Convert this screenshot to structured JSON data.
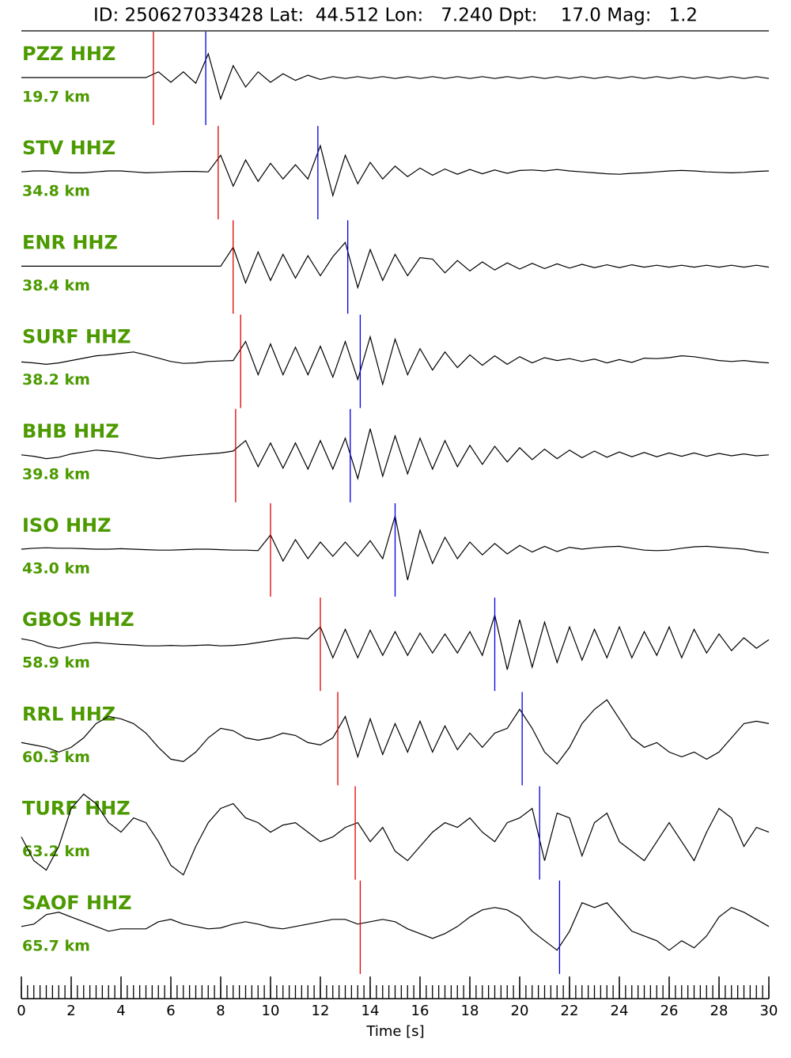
{
  "chart_data": {
    "type": "seismogram",
    "title": "ID: 250627033428 Lat:  44.512 Lon:   7.240 Dpt:    17.0 Mag:   1.2",
    "xlabel": "Time [s]",
    "xlim": [
      0,
      30
    ],
    "xticks": [
      0,
      2,
      4,
      6,
      8,
      10,
      12,
      14,
      16,
      18,
      20,
      22,
      24,
      26,
      28,
      30
    ],
    "xminorticks": [
      0,
      0.25,
      0.5,
      0.75,
      1,
      1.25,
      1.5,
      1.75,
      2,
      2.25,
      2.5,
      2.75,
      3,
      3.25,
      3.5,
      3.75,
      4,
      4.25,
      4.5,
      4.75,
      5,
      5.25,
      5.5,
      5.75,
      6,
      6.25,
      6.5,
      6.75,
      7,
      7.25,
      7.5,
      7.75,
      8,
      8.25,
      8.5,
      8.75,
      9,
      9.25,
      9.5,
      9.75,
      10,
      10.25,
      10.5,
      10.75,
      11,
      11.25,
      11.5,
      11.75,
      12,
      12.25,
      12.5,
      12.75,
      13,
      13.25,
      13.5,
      13.75,
      14,
      14.25,
      14.5,
      14.75,
      15,
      15.25,
      15.5,
      15.75,
      16,
      16.25,
      16.5,
      16.75,
      17,
      17.25,
      17.5,
      17.75,
      18,
      18.25,
      18.5,
      18.75,
      19,
      19.25,
      19.5,
      19.75,
      20,
      20.25,
      20.5,
      20.75,
      21,
      21.25,
      21.5,
      21.75,
      22,
      22.25,
      22.5,
      22.75,
      23,
      23.25,
      23.5,
      23.75,
      24,
      24.25,
      24.5,
      24.75,
      25,
      25.25,
      25.5,
      25.75,
      26,
      26.25,
      26.5,
      26.75,
      27,
      27.25,
      27.5,
      27.75,
      28,
      28.25,
      28.5,
      28.75,
      29,
      29.25,
      29.5,
      29.75,
      30
    ],
    "x": [
      0,
      0.5,
      1,
      1.5,
      2,
      2.5,
      3,
      3.5,
      4,
      4.5,
      5,
      5.5,
      6,
      6.5,
      7,
      7.5,
      8,
      8.5,
      9,
      9.5,
      10,
      10.5,
      11,
      11.5,
      12,
      12.5,
      13,
      13.5,
      14,
      14.5,
      15,
      15.5,
      16,
      16.5,
      17,
      17.5,
      18,
      18.5,
      19,
      19.5,
      20,
      20.5,
      21,
      21.5,
      22,
      22.5,
      23,
      23.5,
      24,
      24.5,
      25,
      25.5,
      26,
      26.5,
      27,
      27.5,
      28,
      28.5,
      29,
      29.5,
      30
    ],
    "trace_color": "#000000",
    "p_color": "#e00000",
    "s_color": "#0000e0",
    "label_color": "#4c9a00",
    "series": [
      {
        "name": "PZZ HHZ",
        "distance": "19.7 km",
        "p_pick": 5.3,
        "s_pick": 7.4,
        "values": [
          0,
          0,
          0,
          0,
          0,
          0,
          0,
          0,
          0,
          0,
          0,
          0.12,
          -0.1,
          0.12,
          -0.12,
          0.5,
          -0.45,
          0.25,
          -0.2,
          0.12,
          -0.1,
          0.08,
          -0.06,
          0.05,
          -0.04,
          0.02,
          -0.02,
          0.02,
          -0.02,
          0.02,
          -0.02,
          0.02,
          -0.02,
          0.02,
          -0.02,
          0.02,
          -0.02,
          0.02,
          -0.02,
          0.02,
          -0.02,
          0.02,
          -0.02,
          0.02,
          -0.02,
          0.02,
          -0.02,
          0.02,
          -0.02,
          0.02,
          -0.02,
          0.02,
          -0.02,
          0.02,
          -0.02,
          0.02,
          -0.02,
          0.02,
          -0.02,
          0.02,
          -0.02
        ]
      },
      {
        "name": "STV HHZ",
        "distance": "34.8 km",
        "p_pick": 7.9,
        "s_pick": 11.9,
        "values": [
          0,
          0.02,
          0.02,
          0,
          -0.02,
          -0.02,
          0,
          0.02,
          0.02,
          0,
          -0.02,
          -0.01,
          0,
          0.01,
          0.01,
          0,
          0.35,
          -0.3,
          0.25,
          -0.2,
          0.18,
          -0.15,
          0.15,
          -0.15,
          0.55,
          -0.5,
          0.35,
          -0.25,
          0.2,
          -0.15,
          0.12,
          -0.1,
          0.08,
          -0.07,
          0.06,
          -0.05,
          0.05,
          -0.04,
          0.04,
          -0.03,
          0.03,
          0.04,
          0.02,
          0.05,
          0.02,
          0,
          -0.02,
          -0.04,
          -0.05,
          -0.03,
          -0.02,
          0,
          0.02,
          0.03,
          0.02,
          0,
          -0.01,
          -0.02,
          -0.01,
          0.01,
          0.02
        ]
      },
      {
        "name": "ENR HHZ",
        "distance": "38.4 km",
        "p_pick": 8.5,
        "s_pick": 13.1,
        "values": [
          0,
          0,
          0,
          0,
          0,
          0,
          0,
          0,
          0,
          0,
          0,
          0,
          0,
          0,
          0,
          0,
          0,
          0.4,
          -0.35,
          0.3,
          -0.3,
          0.25,
          -0.25,
          0.22,
          -0.2,
          0.2,
          0.5,
          -0.45,
          0.35,
          -0.3,
          0.25,
          -0.2,
          0.18,
          0.15,
          -0.14,
          0.12,
          -0.1,
          0.09,
          -0.08,
          0.07,
          -0.06,
          0.06,
          -0.05,
          0.05,
          -0.04,
          0.04,
          -0.03,
          0.03,
          -0.03,
          0.03,
          -0.02,
          0.02,
          -0.02,
          0.02,
          -0.02,
          0.02,
          -0.02,
          0.02,
          -0.02,
          0.02,
          -0.02
        ]
      },
      {
        "name": "SURF HHZ",
        "distance": "38.2 km",
        "p_pick": 8.8,
        "s_pick": 13.6,
        "values": [
          -0.03,
          -0.05,
          -0.08,
          -0.05,
          0,
          0.05,
          0.1,
          0.12,
          0.15,
          0.18,
          0.12,
          0.05,
          -0.02,
          -0.06,
          -0.05,
          -0.02,
          -0.01,
          0,
          0.4,
          -0.3,
          0.35,
          -0.3,
          0.28,
          -0.3,
          0.3,
          -0.35,
          0.4,
          -0.4,
          0.5,
          -0.5,
          0.45,
          -0.3,
          0.25,
          -0.2,
          0.18,
          -0.15,
          0.12,
          -0.1,
          0.1,
          -0.08,
          0.08,
          -0.05,
          0.06,
          0,
          0.04,
          -0.02,
          0.03,
          -0.05,
          0.02,
          -0.04,
          0.05,
          0.04,
          0.06,
          0.1,
          0.08,
          0.04,
          0,
          -0.02,
          0,
          -0.03,
          -0.05
        ]
      },
      {
        "name": "BHB HHZ",
        "distance": "39.8 km",
        "p_pick": 8.6,
        "s_pick": 13.2,
        "values": [
          0,
          -0.03,
          -0.08,
          -0.05,
          0.02,
          0.06,
          0.1,
          0.08,
          0.05,
          0,
          -0.05,
          -0.08,
          -0.05,
          -0.02,
          0,
          0.02,
          0.04,
          0.08,
          0.3,
          -0.25,
          0.25,
          -0.28,
          0.25,
          -0.3,
          0.3,
          -0.3,
          0.35,
          -0.5,
          0.55,
          -0.45,
          0.4,
          -0.4,
          0.35,
          -0.3,
          0.3,
          -0.25,
          0.2,
          -0.2,
          0.18,
          -0.15,
          0.15,
          -0.1,
          0.12,
          -0.08,
          0.1,
          -0.06,
          0.08,
          -0.05,
          0.06,
          -0.04,
          0.05,
          -0.04,
          0.04,
          -0.03,
          0.04,
          -0.03,
          0.03,
          -0.02,
          0.02,
          -0.02,
          0
        ]
      },
      {
        "name": "ISO HHZ",
        "distance": "43.0 km",
        "p_pick": 10.0,
        "s_pick": 15.0,
        "values": [
          0,
          0.02,
          0.03,
          0.02,
          0.02,
          0.01,
          0,
          0,
          0.01,
          0,
          -0.01,
          -0.02,
          -0.02,
          -0.01,
          0,
          0,
          -0.01,
          -0.02,
          -0.02,
          -0.03,
          0.3,
          -0.25,
          0.2,
          -0.2,
          0.15,
          -0.15,
          0.15,
          -0.15,
          0.18,
          -0.2,
          0.7,
          -0.65,
          0.4,
          -0.3,
          0.25,
          -0.2,
          0.15,
          -0.12,
          0.12,
          -0.1,
          0.08,
          -0.06,
          0.06,
          -0.05,
          0.04,
          0,
          0.03,
          0.05,
          0.06,
          0.02,
          -0.02,
          -0.03,
          -0.02,
          0.02,
          0.05,
          0.06,
          0.04,
          0.02,
          0,
          -0.05,
          -0.08
        ]
      },
      {
        "name": "GBOS HHZ",
        "distance": "58.9 km",
        "p_pick": 12.0,
        "s_pick": 19.0,
        "values": [
          0.1,
          0.05,
          -0.05,
          -0.1,
          -0.05,
          0,
          0.02,
          0,
          -0.02,
          -0.03,
          -0.05,
          -0.05,
          -0.04,
          -0.05,
          -0.04,
          -0.03,
          -0.05,
          -0.04,
          -0.02,
          0.02,
          0.06,
          0.1,
          0.12,
          0.1,
          0.35,
          -0.3,
          0.3,
          -0.3,
          0.28,
          -0.25,
          0.25,
          -0.25,
          0.22,
          -0.2,
          0.2,
          -0.2,
          0.25,
          -0.25,
          0.6,
          -0.55,
          0.5,
          -0.5,
          0.45,
          -0.4,
          0.35,
          -0.35,
          0.3,
          -0.3,
          0.35,
          -0.3,
          0.25,
          -0.25,
          0.35,
          -0.3,
          0.3,
          -0.2,
          0.2,
          -0.15,
          0.12,
          -0.1,
          0.08
        ]
      },
      {
        "name": "RRL HHZ",
        "distance": "60.3 km",
        "p_pick": 12.7,
        "s_pick": 20.1,
        "values": [
          -0.1,
          -0.15,
          -0.2,
          -0.3,
          -0.2,
          0,
          0.3,
          0.45,
          0.4,
          0.3,
          0.1,
          -0.2,
          -0.45,
          -0.5,
          -0.3,
          0,
          0.2,
          0.15,
          0,
          -0.05,
          0,
          0.1,
          0.05,
          -0.1,
          -0.15,
          0,
          0.45,
          -0.4,
          0.4,
          -0.35,
          0.3,
          -0.3,
          0.35,
          -0.3,
          0.25,
          -0.25,
          0.1,
          -0.2,
          0.1,
          0.2,
          0.6,
          0.2,
          -0.3,
          -0.55,
          -0.2,
          0.3,
          0.6,
          0.8,
          0.4,
          0,
          -0.2,
          -0.1,
          -0.3,
          -0.4,
          -0.3,
          -0.45,
          -0.3,
          0,
          0.3,
          0.35,
          0.3
        ]
      },
      {
        "name": "TURF HHZ",
        "distance": "63.2 km",
        "p_pick": 13.4,
        "s_pick": 20.8,
        "values": [
          -0.1,
          -0.6,
          -0.8,
          -0.3,
          0.5,
          0.8,
          0.6,
          0.2,
          0,
          0.3,
          0.2,
          -0.2,
          -0.7,
          -0.9,
          -0.3,
          0.2,
          0.5,
          0.6,
          0.3,
          0.2,
          0,
          0.15,
          0.2,
          0,
          -0.2,
          -0.1,
          0.1,
          0.2,
          -0.2,
          0.1,
          -0.4,
          -0.6,
          -0.3,
          0,
          0.2,
          0.1,
          0.3,
          0,
          -0.2,
          0.2,
          0.3,
          0.5,
          -0.6,
          0.4,
          0.3,
          -0.5,
          0.2,
          0.4,
          -0.2,
          -0.4,
          -0.6,
          -0.2,
          0.2,
          -0.2,
          -0.6,
          0,
          0.5,
          0.3,
          -0.3,
          0.1,
          0
        ]
      },
      {
        "name": "SAOF HHZ",
        "distance": "65.7 km",
        "p_pick": 13.6,
        "s_pick": 21.6,
        "values": [
          0,
          0.05,
          0.25,
          0.3,
          0.2,
          0.1,
          0,
          -0.1,
          -0.05,
          -0.05,
          -0.05,
          0.1,
          0.15,
          0.05,
          0,
          -0.05,
          -0.03,
          0.05,
          0.1,
          0.05,
          -0.02,
          -0.05,
          0,
          0.05,
          0.1,
          0.15,
          0.15,
          0.05,
          0.1,
          0.15,
          0.1,
          -0.05,
          -0.15,
          -0.25,
          -0.15,
          0,
          0.2,
          0.35,
          0.4,
          0.35,
          0.2,
          -0.1,
          -0.3,
          -0.5,
          -0.1,
          0.5,
          0.4,
          0.5,
          0.2,
          -0.1,
          -0.2,
          -0.3,
          -0.5,
          -0.3,
          -0.45,
          -0.2,
          0.2,
          0.4,
          0.3,
          0.15,
          0
        ]
      }
    ]
  }
}
